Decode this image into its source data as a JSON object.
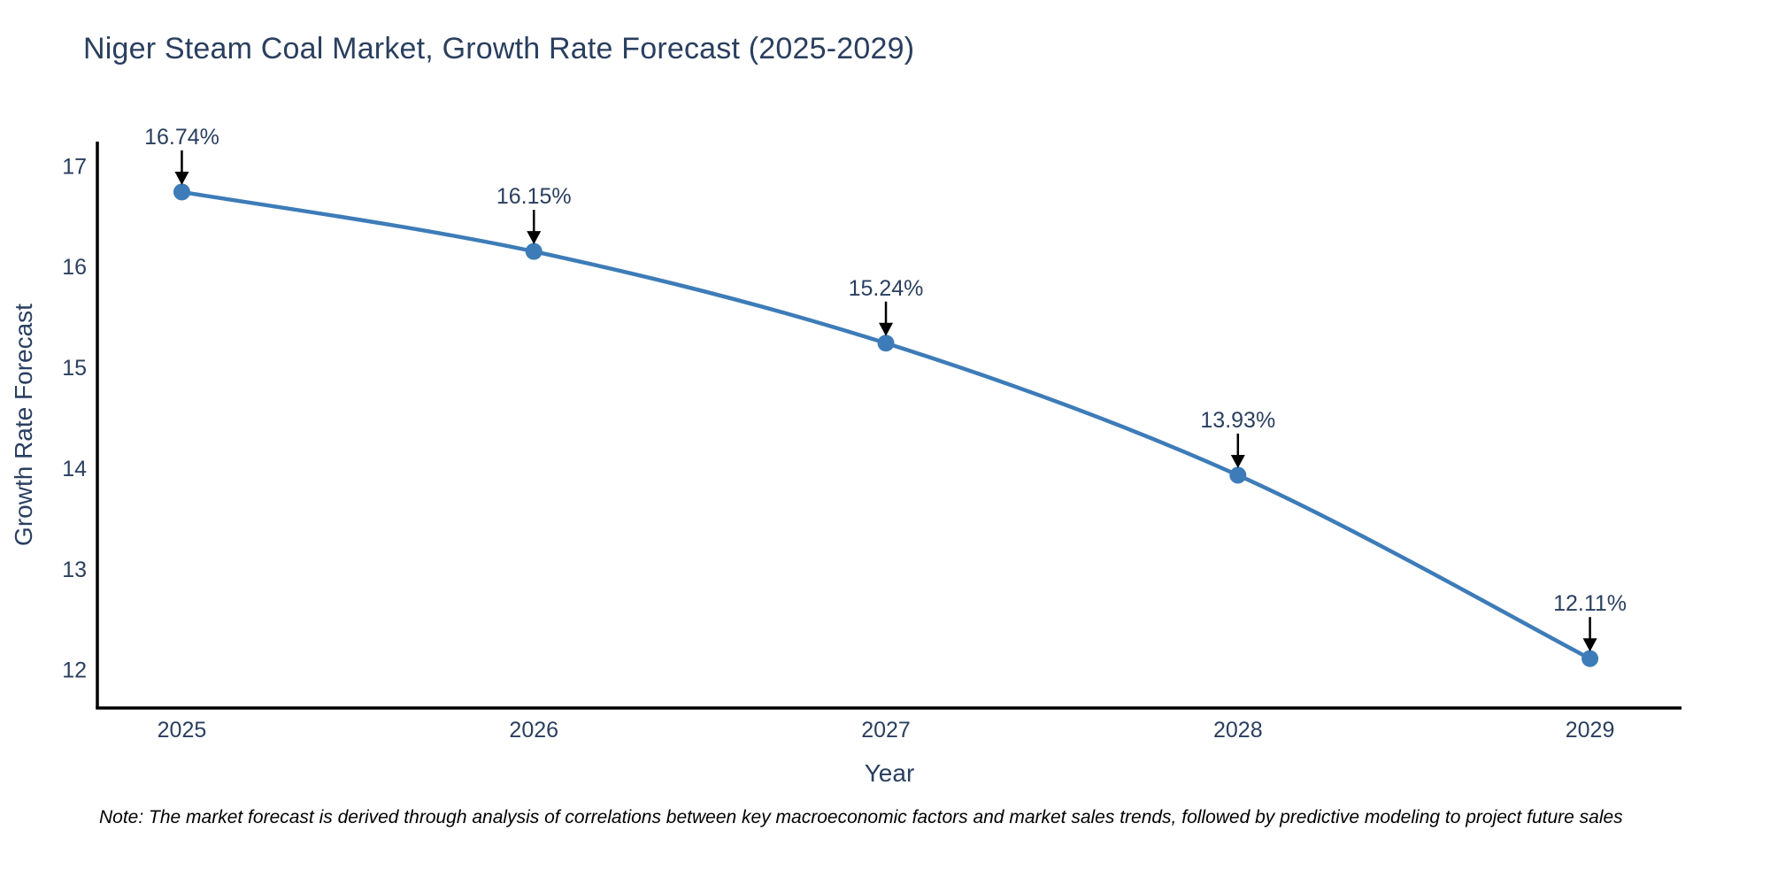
{
  "figure": {
    "title": "Niger Steam Coal Market, Growth Rate Forecast (2025-2029)",
    "note": "Note: The market forecast is derived through analysis of correlations between key macroeconomic factors and market sales trends, followed by predictive modeling to project future sales"
  },
  "chart_data": {
    "type": "line",
    "title": "Niger Steam Coal Market, Growth Rate Forecast (2025-2029)",
    "xlabel": "Year",
    "ylabel": "Growth Rate Forecast",
    "x": [
      2025,
      2026,
      2027,
      2028,
      2029
    ],
    "series": [
      {
        "name": "Growth Rate Forecast",
        "values": [
          16.74,
          16.15,
          15.24,
          13.93,
          12.11
        ]
      }
    ],
    "point_labels": [
      "16.74%",
      "16.15%",
      "15.24%",
      "13.93%",
      "12.11%"
    ],
    "xticks": [
      "2025",
      "2026",
      "2027",
      "2028",
      "2029"
    ],
    "yticks": [
      12,
      13,
      14,
      15,
      16,
      17
    ],
    "xlim": [
      2024.76,
      2029.26
    ],
    "ylim": [
      11.62,
      17.24
    ],
    "grid": false,
    "legend": "none",
    "line_shape": "spline",
    "marker_size": 9.5,
    "colors": {
      "line": "#3d7cb8",
      "marker": "#3d7cb8",
      "arrow": "#000000",
      "text": "#2a3f5f",
      "axis": "#000000"
    }
  }
}
